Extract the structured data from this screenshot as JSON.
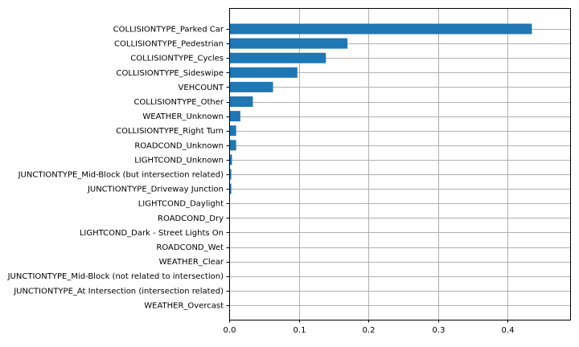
{
  "chart_data": {
    "type": "bar",
    "orientation": "horizontal",
    "title": "",
    "xlabel": "",
    "ylabel": "",
    "xlim": [
      0,
      0.49
    ],
    "xticks": [
      0.0,
      0.1,
      0.2,
      0.3,
      0.4
    ],
    "xtick_labels": [
      "0.0",
      "0.1",
      "0.2",
      "0.3",
      "0.4"
    ],
    "grid": true,
    "legend": "none",
    "bar_color": "#1f77b4",
    "grid_color": "#b0b0b0",
    "categories": [
      "COLLISIONTYPE_Parked Car",
      "COLLISIONTYPE_Pedestrian",
      "COLLISIONTYPE_Cycles",
      "COLLISIONTYPE_Sideswipe",
      "VEHCOUNT",
      "COLLISIONTYPE_Other",
      "WEATHER_Unknown",
      "COLLISIONTYPE_Right Turn",
      "ROADCOND_Unknown",
      "LIGHTCOND_Unknown",
      "JUNCTIONTYPE_Mid-Block (but intersection related)",
      "JUNCTIONTYPE_Driveway Junction",
      "LIGHTCOND_Daylight",
      "ROADCOND_Dry",
      "LIGHTCOND_Dark - Street Lights On",
      "ROADCOND_Wet",
      "WEATHER_Clear",
      "JUNCTIONTYPE_Mid-Block (not related to intersection)",
      "JUNCTIONTYPE_At Intersection (intersection related)",
      "WEATHER_Overcast"
    ],
    "values": [
      0.435,
      0.17,
      0.139,
      0.098,
      0.063,
      0.034,
      0.016,
      0.01,
      0.01,
      0.004,
      0.003,
      0.003,
      0.0,
      0.0,
      0.0,
      0.0,
      0.0,
      0.0,
      0.0,
      0.0
    ]
  }
}
